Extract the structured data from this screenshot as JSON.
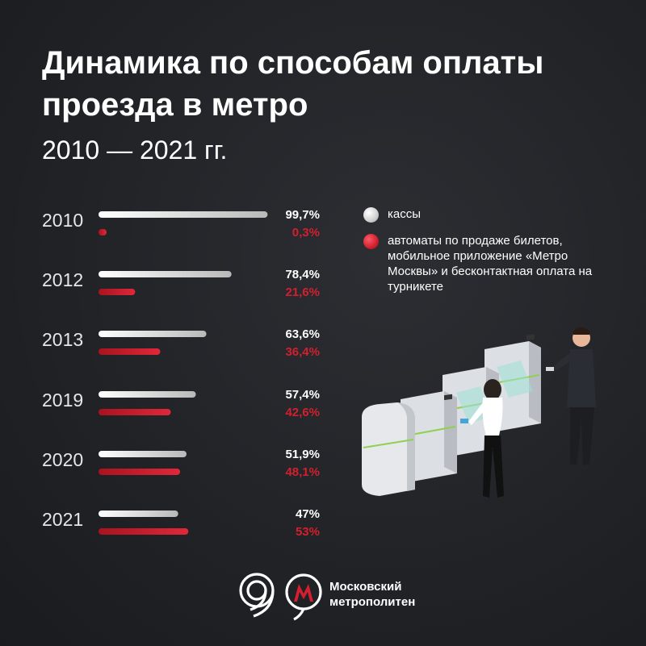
{
  "title": "Динамика по способам оплаты проезда в метро",
  "subtitle": "2010 — 2021 гг.",
  "legend": {
    "items": [
      {
        "label": "кассы",
        "color": "#e8e8e8"
      },
      {
        "label": "автоматы по продаже билетов, мобильное приложение «Метро Москвы» и бесконтактная оплата на турникете",
        "color": "#d41f2e"
      }
    ]
  },
  "chart_data": {
    "type": "bar",
    "orientation": "horizontal",
    "categories": [
      "2010",
      "2012",
      "2013",
      "2019",
      "2020",
      "2021"
    ],
    "series": [
      {
        "name": "кассы",
        "values": [
          99.7,
          78.4,
          63.6,
          57.4,
          51.9,
          47
        ],
        "labels": [
          "99,7%",
          "78,4%",
          "63,6%",
          "57,4%",
          "51,9%",
          "47%"
        ],
        "color": "#e6e6e6"
      },
      {
        "name": "автоматы по продаже билетов, мобильное приложение «Метро Москвы» и бесконтактная оплата на турникете",
        "values": [
          0.3,
          21.6,
          36.4,
          42.6,
          48.1,
          53
        ],
        "labels": [
          "0,3%",
          "21,6%",
          "36,4%",
          "42,6%",
          "48,1%",
          "53%"
        ],
        "color": "#d41f2e"
      }
    ],
    "xlim": [
      0,
      100
    ],
    "grid": false,
    "legend_position": "right"
  },
  "logo": {
    "line1": "Московский",
    "line2": "метрополитен"
  }
}
